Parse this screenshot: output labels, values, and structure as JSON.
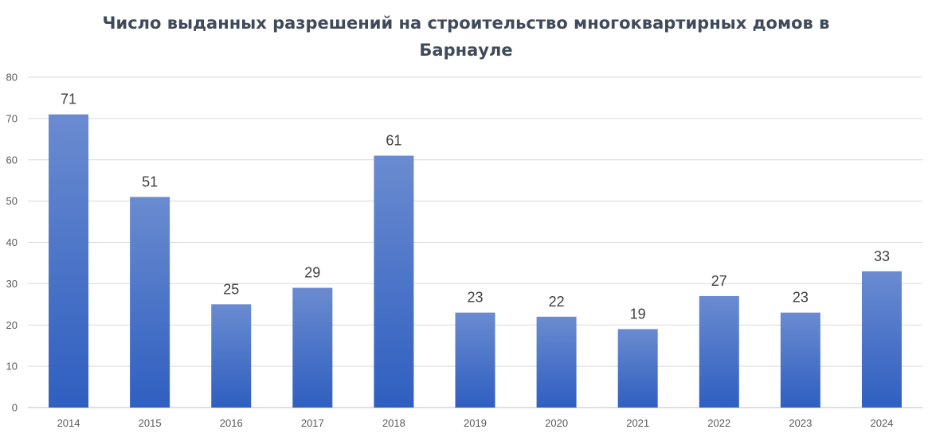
{
  "chart_data": {
    "type": "bar",
    "title_lines": [
      "Число выданных разрешений на строительство многоквартирных домов в",
      "Барнауле"
    ],
    "categories": [
      "2014",
      "2015",
      "2016",
      "2017",
      "2018",
      "2019",
      "2020",
      "2021",
      "2022",
      "2023",
      "2024"
    ],
    "values": [
      71,
      51,
      25,
      29,
      61,
      23,
      22,
      19,
      27,
      23,
      33
    ],
    "xlabel": "",
    "ylabel": "",
    "ylim": [
      0,
      80
    ],
    "yticks": [
      0,
      10,
      20,
      30,
      40,
      50,
      60,
      70,
      80
    ],
    "grid": true,
    "legend": "none",
    "colors": {
      "bar_top": "#6a8bd0",
      "bar_bottom": "#2f5fc0",
      "grid": "#d9d9d9",
      "axis": "#bfbfbf"
    }
  }
}
